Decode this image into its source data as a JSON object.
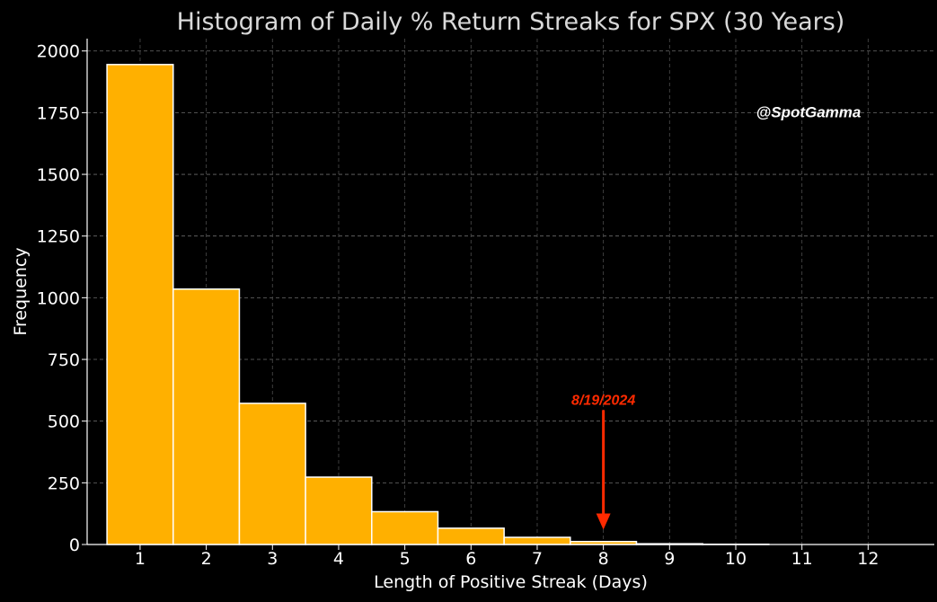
{
  "chart_data": {
    "type": "bar",
    "title": "Histogram of Daily % Return Streaks for SPX (30 Years)",
    "xlabel": "Length of Positive Streak (Days)",
    "ylabel": "Frequency",
    "categories": [
      1,
      2,
      3,
      4,
      5,
      6,
      7,
      8,
      9,
      10,
      11,
      12
    ],
    "values": [
      1945,
      1035,
      572,
      273,
      133,
      66,
      29,
      12,
      3,
      1,
      0,
      0
    ],
    "xlim": [
      0.2,
      13.0
    ],
    "ylim": [
      0,
      2050
    ],
    "yticks": [
      0,
      250,
      500,
      750,
      1000,
      1250,
      1500,
      1750,
      2000
    ],
    "xticks": [
      1,
      2,
      3,
      4,
      5,
      6,
      7,
      8,
      9,
      10,
      11,
      12
    ],
    "grid": true,
    "bar_color": "#ffb000",
    "bar_edge_color": "#ffffff",
    "background": "#000000",
    "annotation": {
      "text": "8/19/2024",
      "x": 8,
      "arrow_from_y": 545,
      "arrow_to_y": 60,
      "color": "#ff2a00"
    },
    "watermark": "@SpotGamma"
  }
}
